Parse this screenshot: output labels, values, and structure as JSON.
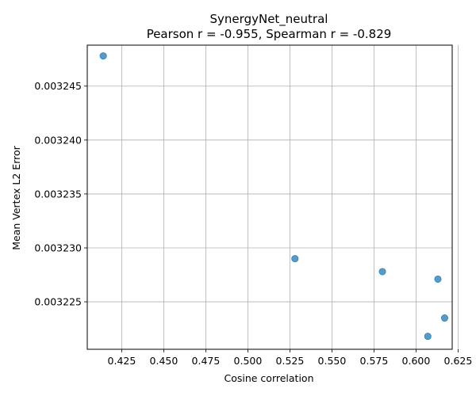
{
  "chart_data": {
    "type": "scatter",
    "title": "SynergyNet_neutral",
    "subtitle": "Pearson r = -0.955, Spearman r = -0.829",
    "xlabel": "Cosine correlation",
    "ylabel": "Mean Vertex L2 Error",
    "xlim": [
      0.4045,
      0.6215
    ],
    "ylim": [
      0.0032206,
      0.0032488
    ],
    "xticks": [
      0.425,
      0.45,
      0.475,
      0.5,
      0.525,
      0.55,
      0.575,
      0.6,
      0.625
    ],
    "xtick_labels": [
      "0.425",
      "0.450",
      "0.475",
      "0.500",
      "0.525",
      "0.550",
      "0.575",
      "0.600",
      "0.625"
    ],
    "yticks": [
      0.003225,
      0.00323,
      0.003235,
      0.00324,
      0.003245
    ],
    "ytick_labels": [
      "0.003225",
      "0.003230",
      "0.003235",
      "0.003240",
      "0.003245"
    ],
    "grid": true,
    "marker_color": "#1f77b4",
    "points": [
      {
        "x": 0.414,
        "y": 0.0032478
      },
      {
        "x": 0.528,
        "y": 0.003229
      },
      {
        "x": 0.58,
        "y": 0.0032278
      },
      {
        "x": 0.613,
        "y": 0.0032271
      },
      {
        "x": 0.617,
        "y": 0.0032235
      },
      {
        "x": 0.607,
        "y": 0.0032218
      }
    ]
  }
}
